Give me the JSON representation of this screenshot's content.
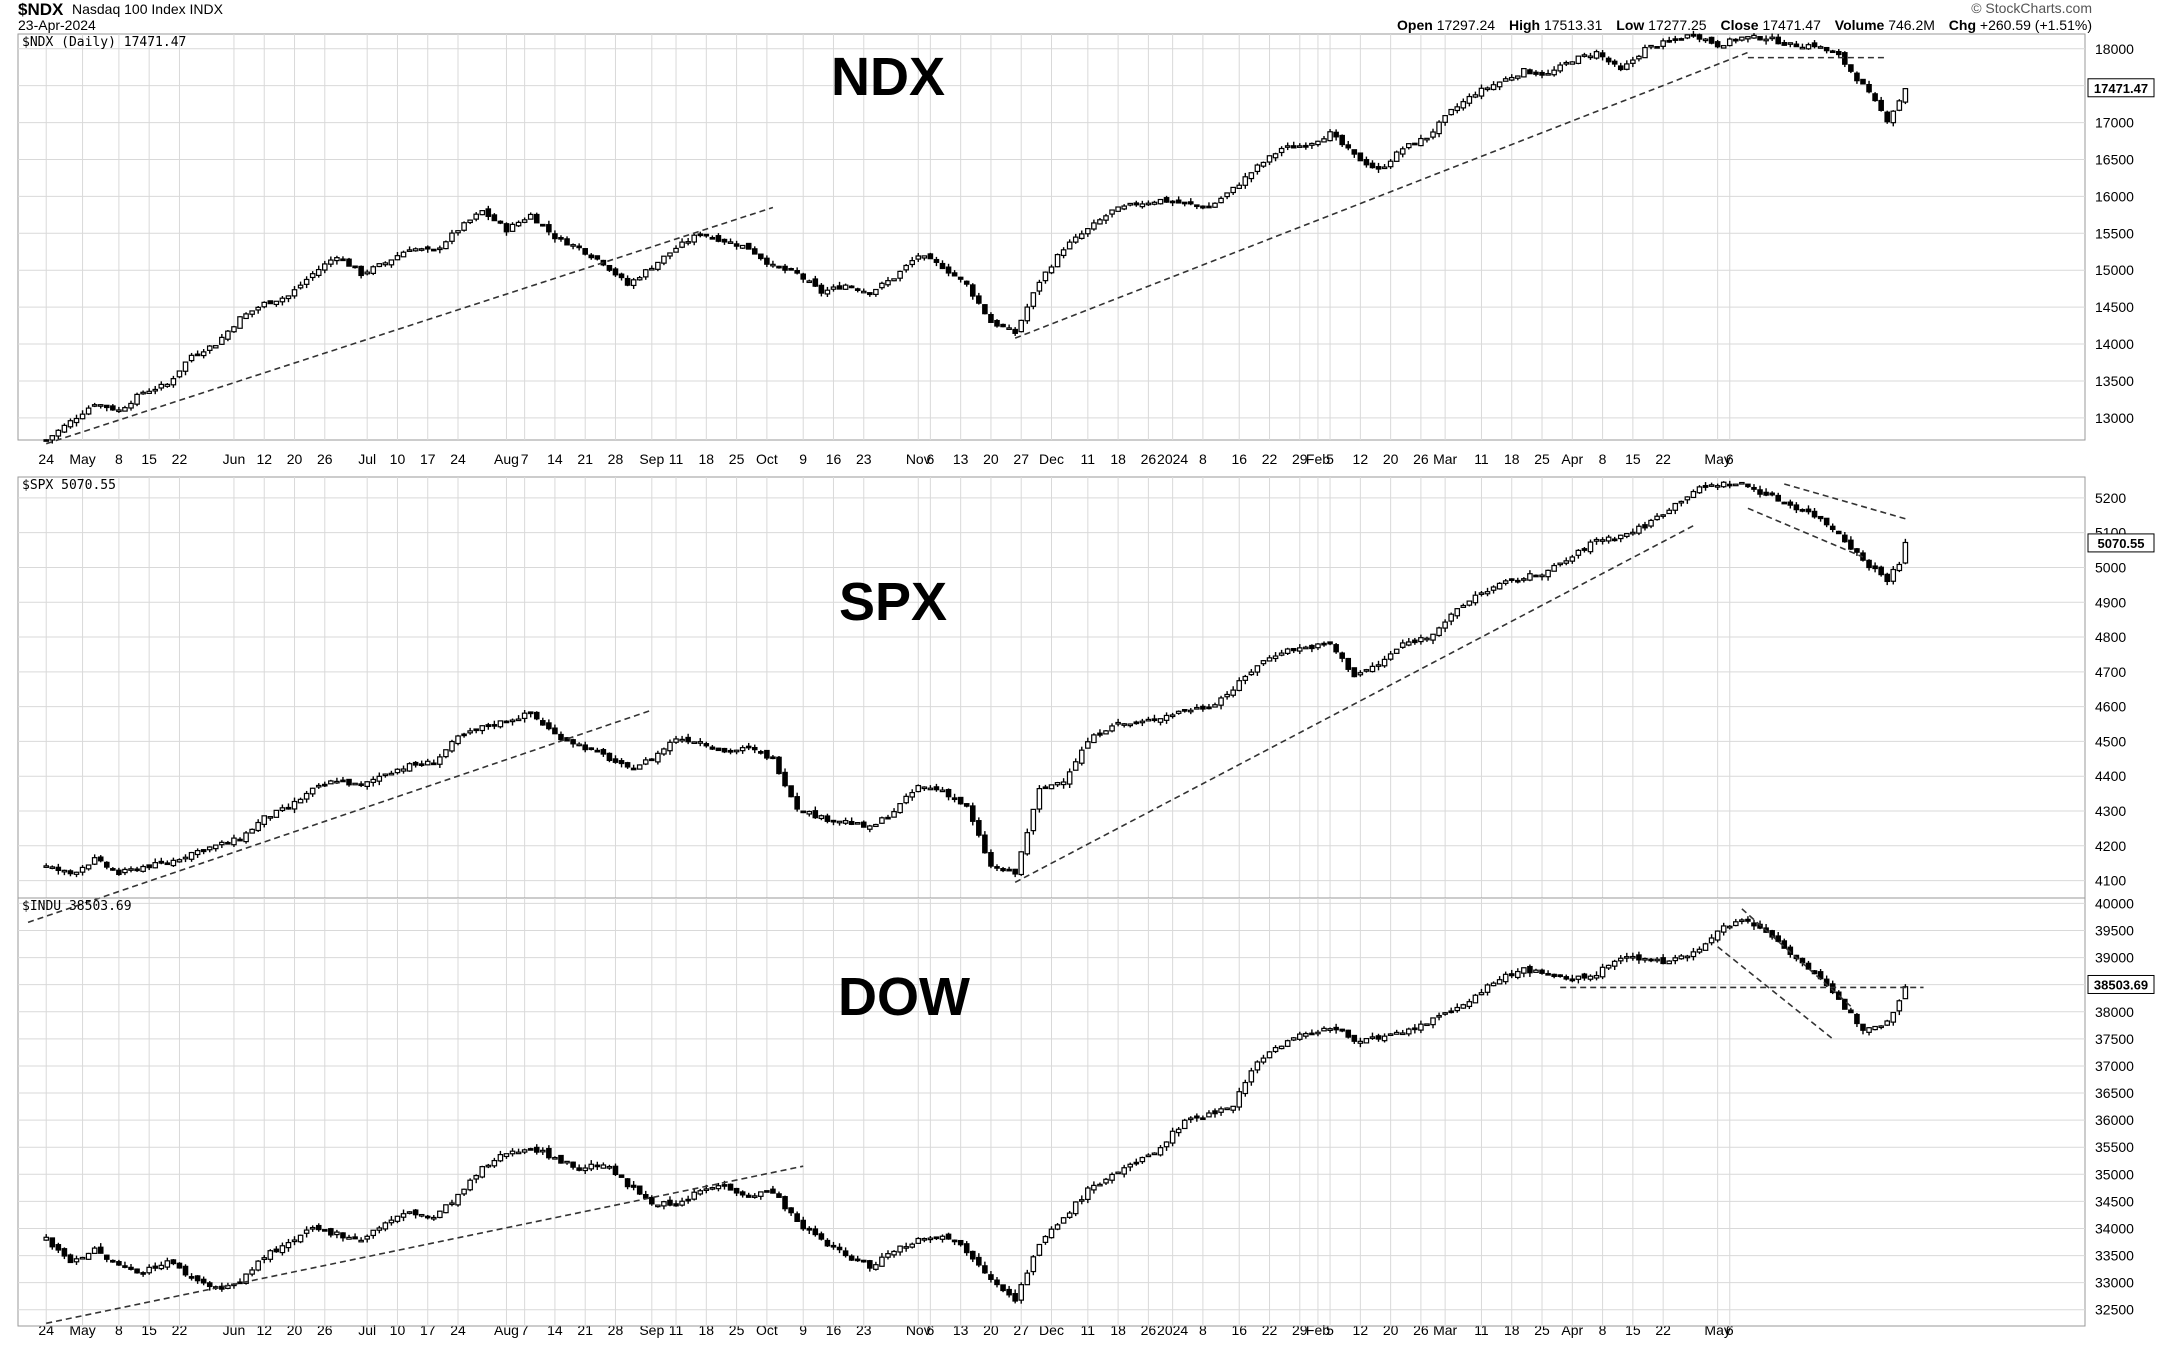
{
  "header": {
    "symbol": "$NDX",
    "symbol_name": "Nasdaq 100 Index INDX",
    "date": "23-Apr-2024",
    "brand": "© StockCharts.com",
    "open_label": "Open",
    "open": "17297.24",
    "high_label": "High",
    "high": "17513.31",
    "low_label": "Low",
    "low": "17277.25",
    "close_label": "Close",
    "close": "17471.47",
    "volume_label": "Volume",
    "volume": "746.2M",
    "chg_label": "Chg",
    "chg": "+260.59 (+1.51%)"
  },
  "colors": {
    "candle": "#000000",
    "grid": "#d9d9d9",
    "trend": "#333333",
    "tag_bg": "#ffffff"
  },
  "chart_data": [
    {
      "type": "candlestick",
      "name": "NDX",
      "caption": "$NDX (Daily) 17471.47",
      "last_value": "17471.47",
      "y_ticks": [
        13000,
        13500,
        14000,
        14500,
        15000,
        15500,
        16000,
        16500,
        17000,
        17500,
        18000
      ],
      "ylim": [
        12700,
        18200
      ],
      "close_points": [
        [
          0,
          12700
        ],
        [
          4,
          12950
        ],
        [
          8,
          13200
        ],
        [
          12,
          13100
        ],
        [
          16,
          13350
        ],
        [
          20,
          13450
        ],
        [
          24,
          13850
        ],
        [
          28,
          14000
        ],
        [
          32,
          14350
        ],
        [
          36,
          14550
        ],
        [
          40,
          14650
        ],
        [
          44,
          14950
        ],
        [
          48,
          15200
        ],
        [
          52,
          14950
        ],
        [
          56,
          15100
        ],
        [
          60,
          15300
        ],
        [
          64,
          15250
        ],
        [
          68,
          15550
        ],
        [
          72,
          15800
        ],
        [
          76,
          15550
        ],
        [
          80,
          15750
        ],
        [
          84,
          15450
        ],
        [
          88,
          15300
        ],
        [
          92,
          15100
        ],
        [
          96,
          14800
        ],
        [
          100,
          15050
        ],
        [
          104,
          15300
        ],
        [
          108,
          15500
        ],
        [
          112,
          15400
        ],
        [
          116,
          15300
        ],
        [
          120,
          15050
        ],
        [
          124,
          14950
        ],
        [
          128,
          14700
        ],
        [
          132,
          14800
        ],
        [
          136,
          14700
        ],
        [
          140,
          14900
        ],
        [
          144,
          15200
        ],
        [
          148,
          15050
        ],
        [
          152,
          14800
        ],
        [
          156,
          14300
        ],
        [
          160,
          14150
        ],
        [
          164,
          14850
        ],
        [
          168,
          15300
        ],
        [
          172,
          15550
        ],
        [
          176,
          15800
        ],
        [
          180,
          15900
        ],
        [
          184,
          15950
        ],
        [
          188,
          15900
        ],
        [
          192,
          15850
        ],
        [
          196,
          16100
        ],
        [
          200,
          16400
        ],
        [
          204,
          16650
        ],
        [
          208,
          16700
        ],
        [
          212,
          16850
        ],
        [
          216,
          16550
        ],
        [
          220,
          16350
        ],
        [
          224,
          16650
        ],
        [
          228,
          16800
        ],
        [
          232,
          17150
        ],
        [
          236,
          17400
        ],
        [
          240,
          17550
        ],
        [
          244,
          17700
        ],
        [
          248,
          17650
        ],
        [
          252,
          17850
        ],
        [
          256,
          17950
        ],
        [
          260,
          17700
        ],
        [
          264,
          18000
        ],
        [
          268,
          18100
        ],
        [
          272,
          18200
        ],
        [
          276,
          18050
        ],
        [
          280,
          18150
        ],
        [
          284,
          18150
        ],
        [
          288,
          18050
        ],
        [
          292,
          18050
        ],
        [
          296,
          17900
        ],
        [
          300,
          17500
        ],
        [
          304,
          17040
        ],
        [
          306,
          17300
        ],
        [
          307,
          17471
        ]
      ],
      "trendlines": [
        {
          "x": [
            0,
            120
          ],
          "y": [
            12650,
            15850
          ]
        },
        {
          "x": [
            160,
            281
          ],
          "y": [
            14080,
            17950
          ]
        },
        {
          "x": [
            281,
            304
          ],
          "y": [
            17880,
            17880
          ]
        }
      ]
    },
    {
      "type": "candlestick",
      "name": "SPX",
      "caption": "$SPX 5070.55",
      "last_value": "5070.55",
      "y_ticks": [
        4100,
        4200,
        4300,
        4400,
        4500,
        4600,
        4700,
        4800,
        4900,
        5000,
        5100,
        5200
      ],
      "ylim": [
        4050,
        5260
      ],
      "close_points": [
        [
          0,
          4140
        ],
        [
          4,
          4120
        ],
        [
          8,
          4160
        ],
        [
          12,
          4120
        ],
        [
          16,
          4140
        ],
        [
          20,
          4150
        ],
        [
          24,
          4180
        ],
        [
          28,
          4200
        ],
        [
          32,
          4220
        ],
        [
          36,
          4280
        ],
        [
          40,
          4310
        ],
        [
          44,
          4360
        ],
        [
          48,
          4390
        ],
        [
          52,
          4370
        ],
        [
          56,
          4410
        ],
        [
          60,
          4430
        ],
        [
          64,
          4440
        ],
        [
          68,
          4510
        ],
        [
          72,
          4540
        ],
        [
          76,
          4560
        ],
        [
          80,
          4580
        ],
        [
          84,
          4520
        ],
        [
          88,
          4490
        ],
        [
          92,
          4460
        ],
        [
          96,
          4420
        ],
        [
          100,
          4450
        ],
        [
          104,
          4510
        ],
        [
          108,
          4500
        ],
        [
          112,
          4470
        ],
        [
          116,
          4480
        ],
        [
          120,
          4450
        ],
        [
          124,
          4310
        ],
        [
          128,
          4280
        ],
        [
          132,
          4270
        ],
        [
          136,
          4250
        ],
        [
          140,
          4300
        ],
        [
          144,
          4370
        ],
        [
          148,
          4360
        ],
        [
          152,
          4310
        ],
        [
          156,
          4140
        ],
        [
          160,
          4120
        ],
        [
          164,
          4360
        ],
        [
          168,
          4390
        ],
        [
          172,
          4500
        ],
        [
          176,
          4550
        ],
        [
          180,
          4550
        ],
        [
          184,
          4570
        ],
        [
          188,
          4590
        ],
        [
          192,
          4600
        ],
        [
          196,
          4650
        ],
        [
          200,
          4720
        ],
        [
          204,
          4760
        ],
        [
          208,
          4770
        ],
        [
          212,
          4780
        ],
        [
          216,
          4690
        ],
        [
          220,
          4720
        ],
        [
          224,
          4780
        ],
        [
          228,
          4800
        ],
        [
          232,
          4860
        ],
        [
          236,
          4920
        ],
        [
          240,
          4950
        ],
        [
          244,
          4970
        ],
        [
          248,
          4990
        ],
        [
          252,
          5030
        ],
        [
          256,
          5080
        ],
        [
          260,
          5090
        ],
        [
          264,
          5120
        ],
        [
          268,
          5170
        ],
        [
          272,
          5220
        ],
        [
          276,
          5240
        ],
        [
          280,
          5240
        ],
        [
          284,
          5210
        ],
        [
          288,
          5180
        ],
        [
          292,
          5150
        ],
        [
          296,
          5100
        ],
        [
          300,
          5020
        ],
        [
          304,
          4967
        ],
        [
          306,
          5010
        ],
        [
          307,
          5070
        ]
      ],
      "trendlines": [
        {
          "x": [
            -3,
            100
          ],
          "y": [
            3980,
            4590
          ]
        },
        {
          "x": [
            160,
            272
          ],
          "y": [
            4095,
            5120
          ]
        },
        {
          "x": [
            287,
            307
          ],
          "y": [
            5240,
            5140
          ]
        },
        {
          "x": [
            281,
            300
          ],
          "y": [
            5170,
            5030
          ]
        }
      ]
    },
    {
      "type": "candlestick",
      "name": "DOW",
      "caption": "$INDU 38503.69",
      "last_value": "38503.69",
      "y_ticks": [
        32500,
        33000,
        33500,
        34000,
        34500,
        35000,
        35500,
        36000,
        36500,
        37000,
        37500,
        38000,
        38500,
        39000,
        39500,
        40000
      ],
      "ylim": [
        32200,
        40100
      ],
      "close_points": [
        [
          0,
          33800
        ],
        [
          4,
          33400
        ],
        [
          8,
          33600
        ],
        [
          12,
          33300
        ],
        [
          16,
          33200
        ],
        [
          20,
          33400
        ],
        [
          24,
          33100
        ],
        [
          28,
          32900
        ],
        [
          32,
          33000
        ],
        [
          36,
          33500
        ],
        [
          40,
          33700
        ],
        [
          44,
          34000
        ],
        [
          48,
          33900
        ],
        [
          52,
          33800
        ],
        [
          56,
          34100
        ],
        [
          60,
          34300
        ],
        [
          64,
          34200
        ],
        [
          68,
          34600
        ],
        [
          72,
          35100
        ],
        [
          76,
          35400
        ],
        [
          80,
          35500
        ],
        [
          84,
          35300
        ],
        [
          88,
          35100
        ],
        [
          92,
          35200
        ],
        [
          96,
          34800
        ],
        [
          100,
          34500
        ],
        [
          104,
          34400
        ],
        [
          108,
          34700
        ],
        [
          112,
          34800
        ],
        [
          116,
          34600
        ],
        [
          120,
          34700
        ],
        [
          124,
          34100
        ],
        [
          128,
          33800
        ],
        [
          132,
          33500
        ],
        [
          136,
          33300
        ],
        [
          140,
          33600
        ],
        [
          144,
          33800
        ],
        [
          148,
          33900
        ],
        [
          152,
          33600
        ],
        [
          156,
          33100
        ],
        [
          160,
          32700
        ],
        [
          164,
          33700
        ],
        [
          168,
          34200
        ],
        [
          172,
          34700
        ],
        [
          176,
          35000
        ],
        [
          180,
          35200
        ],
        [
          184,
          35500
        ],
        [
          188,
          36000
        ],
        [
          192,
          36100
        ],
        [
          196,
          36300
        ],
        [
          200,
          37100
        ],
        [
          204,
          37400
        ],
        [
          208,
          37600
        ],
        [
          212,
          37700
        ],
        [
          216,
          37500
        ],
        [
          220,
          37500
        ],
        [
          224,
          37600
        ],
        [
          228,
          37800
        ],
        [
          232,
          38000
        ],
        [
          236,
          38300
        ],
        [
          240,
          38600
        ],
        [
          244,
          38800
        ],
        [
          248,
          38650
        ],
        [
          252,
          38600
        ],
        [
          256,
          38700
        ],
        [
          260,
          39000
        ],
        [
          264,
          39000
        ],
        [
          268,
          38900
        ],
        [
          272,
          39100
        ],
        [
          276,
          39500
        ],
        [
          280,
          39700
        ],
        [
          284,
          39500
        ],
        [
          288,
          39100
        ],
        [
          292,
          38700
        ],
        [
          296,
          38200
        ],
        [
          300,
          37700
        ],
        [
          304,
          37800
        ],
        [
          306,
          38250
        ],
        [
          307,
          38503
        ]
      ],
      "trendlines": [
        {
          "x": [
            0,
            125
          ],
          "y": [
            32250,
            35150
          ]
        },
        {
          "x": [
            280,
            298
          ],
          "y": [
            39900,
            38100
          ]
        },
        {
          "x": [
            276,
            295
          ],
          "y": [
            39200,
            37500
          ]
        },
        {
          "x": [
            250,
            310
          ],
          "y": [
            38450,
            38450
          ]
        }
      ]
    }
  ],
  "x_ticks": [
    {
      "i": 0,
      "label": "24"
    },
    {
      "i": 6,
      "label": "May"
    },
    {
      "i": 12,
      "label": "8"
    },
    {
      "i": 17,
      "label": "15"
    },
    {
      "i": 22,
      "label": "22"
    },
    {
      "i": 31,
      "label": "Jun"
    },
    {
      "i": 36,
      "label": "12"
    },
    {
      "i": 41,
      "label": "20"
    },
    {
      "i": 46,
      "label": "26"
    },
    {
      "i": 53,
      "label": "Jul"
    },
    {
      "i": 58,
      "label": "10"
    },
    {
      "i": 63,
      "label": "17"
    },
    {
      "i": 68,
      "label": "24"
    },
    {
      "i": 76,
      "label": "Aug"
    },
    {
      "i": 79,
      "label": "7"
    },
    {
      "i": 84,
      "label": "14"
    },
    {
      "i": 89,
      "label": "21"
    },
    {
      "i": 94,
      "label": "28"
    },
    {
      "i": 100,
      "label": "Sep"
    },
    {
      "i": 104,
      "label": "11"
    },
    {
      "i": 109,
      "label": "18"
    },
    {
      "i": 114,
      "label": "25"
    },
    {
      "i": 119,
      "label": "Oct"
    },
    {
      "i": 125,
      "label": "9"
    },
    {
      "i": 130,
      "label": "16"
    },
    {
      "i": 135,
      "label": "23"
    },
    {
      "i": 144,
      "label": "Nov"
    },
    {
      "i": 146,
      "label": "6"
    },
    {
      "i": 151,
      "label": "13"
    },
    {
      "i": 156,
      "label": "20"
    },
    {
      "i": 161,
      "label": "27"
    },
    {
      "i": 166,
      "label": "Dec"
    },
    {
      "i": 172,
      "label": "11"
    },
    {
      "i": 177,
      "label": "18"
    },
    {
      "i": 182,
      "label": "26"
    },
    {
      "i": 186,
      "label": "2024"
    },
    {
      "i": 191,
      "label": "8"
    },
    {
      "i": 197,
      "label": "16"
    },
    {
      "i": 202,
      "label": "22"
    },
    {
      "i": 207,
      "label": "29"
    },
    {
      "i": 210,
      "label": "Feb"
    },
    {
      "i": 212,
      "label": "5"
    },
    {
      "i": 217,
      "label": "12"
    },
    {
      "i": 222,
      "label": "20"
    },
    {
      "i": 227,
      "label": "26"
    },
    {
      "i": 231,
      "label": "Mar"
    },
    {
      "i": 237,
      "label": "11"
    },
    {
      "i": 242,
      "label": "18"
    },
    {
      "i": 247,
      "label": "25"
    },
    {
      "i": 252,
      "label": "Apr"
    },
    {
      "i": 257,
      "label": "8"
    },
    {
      "i": 262,
      "label": "15"
    },
    {
      "i": 267,
      "label": "22"
    },
    {
      "i": 276,
      "label": "May"
    },
    {
      "i": 278,
      "label": "6"
    }
  ]
}
